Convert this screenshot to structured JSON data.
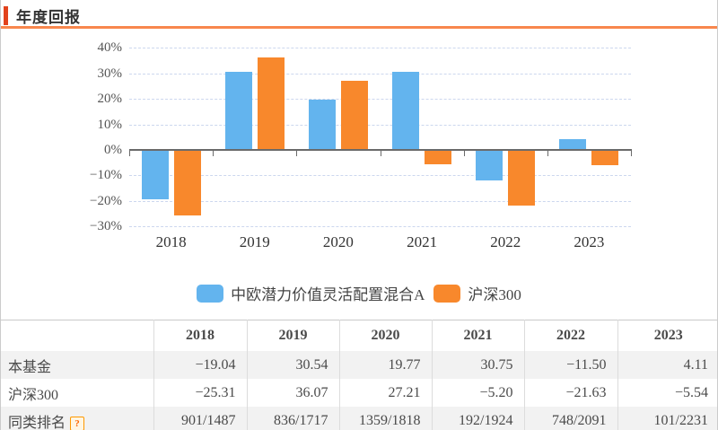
{
  "panel": {
    "title": "年度回报"
  },
  "colors": {
    "fund_blue": "#63b4ee",
    "index_orange": "#f8882c",
    "accent_red": "#e2421c",
    "title_rule_orange": "#f8874d",
    "grid_dash": "#ccd7ee",
    "axis_gray": "#6a6a6a",
    "row_alt_bg": "#f2f2f2"
  },
  "chart_data": {
    "type": "bar",
    "title": "年度回报",
    "categories": [
      "2018",
      "2019",
      "2020",
      "2021",
      "2022",
      "2023"
    ],
    "series": [
      {
        "name": "中欧潜力价值灵活配置混合A",
        "color": "#63b4ee",
        "values": [
          -19.04,
          30.54,
          19.77,
          30.75,
          -11.5,
          4.11
        ]
      },
      {
        "name": "沪深300",
        "color": "#f8882c",
        "values": [
          -25.31,
          36.07,
          27.21,
          -5.2,
          -21.63,
          -5.54
        ]
      }
    ],
    "unit": "%",
    "ylim": [
      -30,
      40
    ],
    "y_ticks": [
      {
        "v": 40,
        "label": "40%"
      },
      {
        "v": 30,
        "label": "30%"
      },
      {
        "v": 20,
        "label": "20%"
      },
      {
        "v": 10,
        "label": "10%"
      },
      {
        "v": 0,
        "label": "0%"
      },
      {
        "v": -10,
        "label": "−10%"
      },
      {
        "v": -20,
        "label": "−20%"
      },
      {
        "v": -30,
        "label": "−30%"
      }
    ],
    "grid": "dashed horizontal",
    "legend_position": "bottom"
  },
  "legend": {
    "items": [
      {
        "label": "中欧潜力价值灵活配置混合A",
        "color": "#63b4ee"
      },
      {
        "label": "沪深300",
        "color": "#f8882c"
      }
    ]
  },
  "table": {
    "columns": [
      "",
      "2018",
      "2019",
      "2020",
      "2021",
      "2022",
      "2023"
    ],
    "rows": [
      {
        "label": "本基金",
        "values": [
          "−19.04",
          "30.54",
          "19.77",
          "30.75",
          "−11.50",
          "4.11"
        ]
      },
      {
        "label": "沪深300",
        "values": [
          "−25.31",
          "36.07",
          "27.21",
          "−5.20",
          "−21.63",
          "−5.54"
        ]
      },
      {
        "label": "同类排名",
        "help_icon": "?",
        "values": [
          "901/1487",
          "836/1717",
          "1359/1818",
          "192/1924",
          "748/2091",
          "101/2231"
        ]
      }
    ]
  }
}
